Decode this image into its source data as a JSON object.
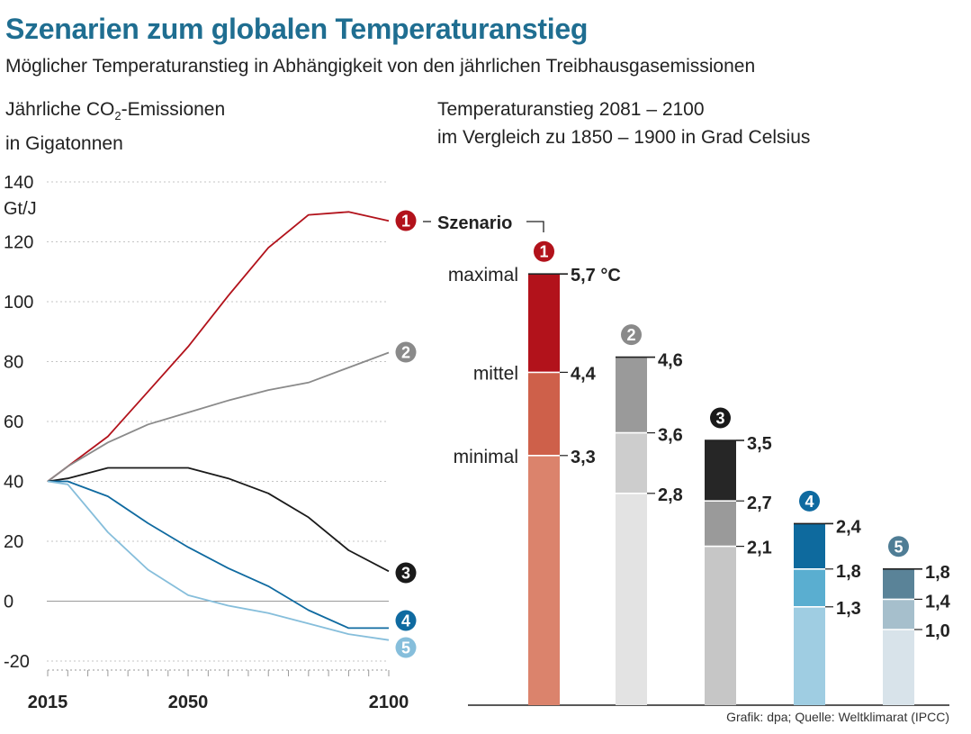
{
  "title": "Szenarien zum globalen Temperaturanstieg",
  "subtitle": "Möglicher Temperaturanstieg in Abhängigkeit von den jährlichen Treibhausgasemissionen",
  "left_header": {
    "line1_prefix": "Jährliche CO",
    "line1_sub": "2",
    "line1_suffix": "-Emissionen",
    "line2": "in Gigatonnen"
  },
  "right_header": {
    "line1": "Temperaturanstieg 2081 – 2100",
    "line2": "im Vergleich zu 1850 – 1900 in Grad Celsius"
  },
  "source": "Grafik: dpa; Quelle: Weltklimarat (IPCC)",
  "chart_data": [
    {
      "type": "line",
      "ylabel": "Gt/J",
      "ylim": [
        -20,
        140
      ],
      "yticks": [
        "140",
        "120",
        "100",
        "80",
        "60",
        "40",
        "20",
        "0",
        "-20"
      ],
      "xlim": [
        2015,
        2100
      ],
      "xticks": [
        "2015",
        "2050",
        "2100"
      ],
      "grid": true,
      "series": [
        {
          "name": "1",
          "color": "#b2121b",
          "points": [
            [
              2015,
              40
            ],
            [
              2020,
              45
            ],
            [
              2030,
              55
            ],
            [
              2040,
              70
            ],
            [
              2050,
              85
            ],
            [
              2060,
              102
            ],
            [
              2070,
              118
            ],
            [
              2080,
              129
            ],
            [
              2090,
              130
            ],
            [
              2100,
              127
            ]
          ]
        },
        {
          "name": "2",
          "color": "#8a8a8a",
          "points": [
            [
              2015,
              40
            ],
            [
              2020,
              45
            ],
            [
              2030,
              53
            ],
            [
              2040,
              59
            ],
            [
              2050,
              63
            ],
            [
              2060,
              67
            ],
            [
              2070,
              70.5
            ],
            [
              2080,
              73
            ],
            [
              2090,
              78
            ],
            [
              2100,
              83
            ]
          ]
        },
        {
          "name": "3",
          "color": "#1a1a1a",
          "points": [
            [
              2015,
              40
            ],
            [
              2020,
              41
            ],
            [
              2030,
              44.5
            ],
            [
              2040,
              44.5
            ],
            [
              2050,
              44.5
            ],
            [
              2060,
              41
            ],
            [
              2070,
              36
            ],
            [
              2080,
              28
            ],
            [
              2090,
              17
            ],
            [
              2100,
              10
            ]
          ]
        },
        {
          "name": "4",
          "color": "#0f6aa0",
          "points": [
            [
              2015,
              40
            ],
            [
              2020,
              40
            ],
            [
              2030,
              35
            ],
            [
              2040,
              26
            ],
            [
              2050,
              18
            ],
            [
              2060,
              11
            ],
            [
              2070,
              5
            ],
            [
              2080,
              -3
            ],
            [
              2090,
              -9
            ],
            [
              2100,
              -9
            ]
          ]
        },
        {
          "name": "5",
          "color": "#86bedb",
          "points": [
            [
              2015,
              40
            ],
            [
              2020,
              39
            ],
            [
              2030,
              23
            ],
            [
              2040,
              10.5
            ],
            [
              2050,
              2
            ],
            [
              2060,
              -1.5
            ],
            [
              2070,
              -4
            ],
            [
              2080,
              -7.5
            ],
            [
              2090,
              -11
            ],
            [
              2100,
              -13
            ]
          ]
        }
      ]
    },
    {
      "type": "bar",
      "legend_title": "Szenario",
      "level_labels": [
        "maximal",
        "mittel",
        "minimal"
      ],
      "unit_label": "°C",
      "scenarios": [
        {
          "name": "1",
          "marker_color": "#b2121b",
          "min": 3.3,
          "mid": 4.4,
          "max": 5.7,
          "labels": [
            "5,7 °C",
            "4,4",
            "3,3"
          ],
          "colors": [
            "#b2121b",
            "#ce604a",
            "#db836c"
          ]
        },
        {
          "name": "2",
          "marker_color": "#8a8a8a",
          "min": 2.8,
          "mid": 3.6,
          "max": 4.6,
          "labels": [
            "4,6",
            "3,6",
            "2,8"
          ],
          "colors": [
            "#9a9a9a",
            "#cdcdcd",
            "#e3e3e3"
          ]
        },
        {
          "name": "3",
          "marker_color": "#1a1a1a",
          "min": 2.1,
          "mid": 2.7,
          "max": 3.5,
          "labels": [
            "3,5",
            "2,7",
            "2,1"
          ],
          "colors": [
            "#262626",
            "#9a9a9a",
            "#c6c6c6"
          ]
        },
        {
          "name": "4",
          "marker_color": "#0f6aa0",
          "min": 1.3,
          "mid": 1.8,
          "max": 2.4,
          "labels": [
            "2,4",
            "1,8",
            "1,3"
          ],
          "colors": [
            "#0e6a9e",
            "#5aaed0",
            "#9fcde2"
          ]
        },
        {
          "name": "5",
          "marker_color": "#4f7d95",
          "min": 1.0,
          "mid": 1.4,
          "max": 1.8,
          "labels": [
            "1,8",
            "1,4",
            "1,0"
          ],
          "colors": [
            "#5a8398",
            "#a6bfcc",
            "#d8e3ea"
          ]
        }
      ]
    }
  ]
}
